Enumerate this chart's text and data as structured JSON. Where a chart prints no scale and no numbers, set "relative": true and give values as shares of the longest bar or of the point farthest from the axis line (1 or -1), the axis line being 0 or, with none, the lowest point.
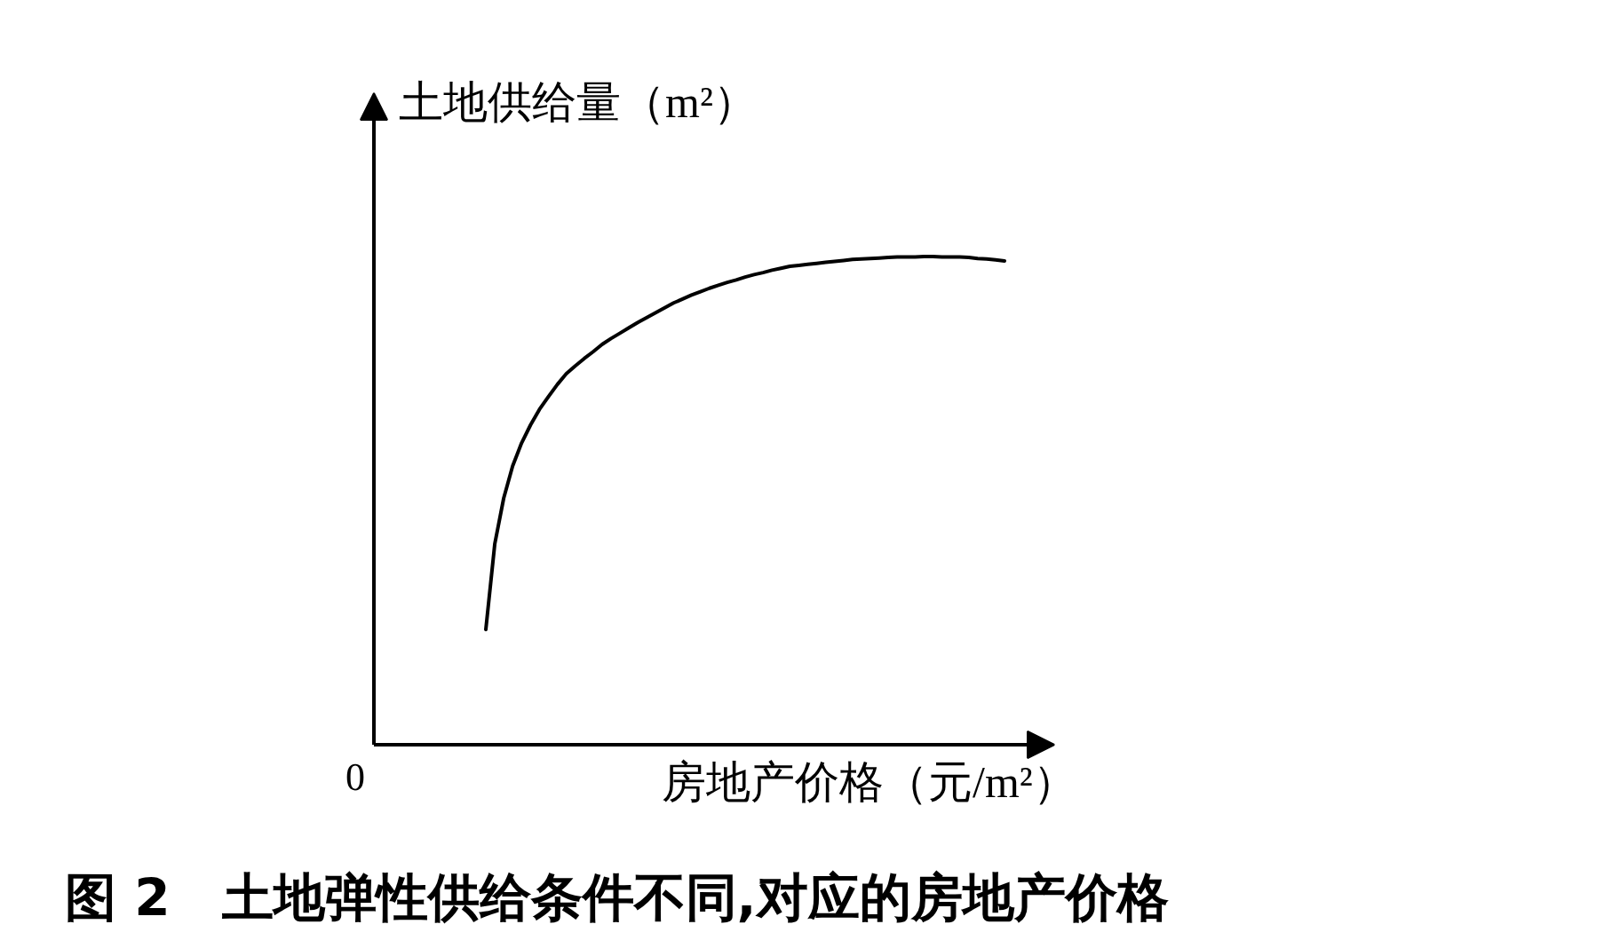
{
  "chart_data": {
    "type": "line",
    "relative": true,
    "title": "图 2　土地弹性供给条件不同,对应的房地产价格",
    "xlabel": "房地产价格（元/m²）",
    "ylabel": "土地供给量（m²）",
    "annotations": [
      "0"
    ],
    "categories": [
      null,
      null,
      null,
      null,
      null,
      null,
      null,
      null,
      null,
      null,
      null,
      null,
      null,
      null,
      null,
      null,
      null,
      null,
      null,
      null,
      null,
      null,
      null,
      null,
      null,
      null,
      null,
      null,
      null,
      null,
      null,
      null,
      null,
      null,
      null,
      null,
      null,
      null,
      null,
      null,
      null,
      null,
      null,
      null,
      null,
      null,
      null,
      null,
      null,
      null,
      null,
      null,
      null,
      null,
      null,
      null,
      null,
      null,
      null
    ],
    "values": [
      0.236,
      0.411,
      0.505,
      0.571,
      0.618,
      0.655,
      0.687,
      0.713,
      0.738,
      0.76,
      0.776,
      0.791,
      0.805,
      0.82,
      0.832,
      0.843,
      0.854,
      0.865,
      0.875,
      0.885,
      0.895,
      0.905,
      0.913,
      0.921,
      0.928,
      0.935,
      0.941,
      0.947,
      0.952,
      0.958,
      0.963,
      0.967,
      0.972,
      0.976,
      0.98,
      0.982,
      0.984,
      0.986,
      0.988,
      0.99,
      0.992,
      0.994,
      0.995,
      0.996,
      0.997,
      0.998,
      0.999,
      0.999,
      0.999,
      1.0,
      1.0,
      0.999,
      0.999,
      0.999,
      0.998,
      0.996,
      0.995,
      0.993,
      0.991
    ],
    "color": "#000000"
  }
}
